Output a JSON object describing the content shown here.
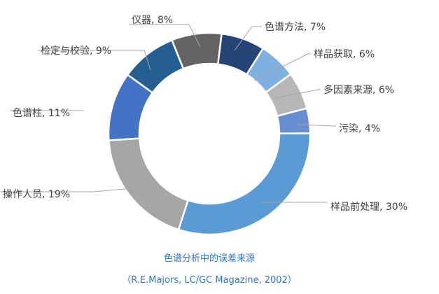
{
  "chart_data": {
    "type": "pie",
    "variant": "donut",
    "title": "色谱分析中的误差来源",
    "subtitle": "（R.E.Majors, LC/GC Magazine, 2002）",
    "legend": "none",
    "slices": [
      {
        "label": "色谱方法",
        "value": 7,
        "display": "色谱方法, 7%",
        "color": "#264478"
      },
      {
        "label": "样品获取",
        "value": 6,
        "display": "样品获取, 6%",
        "color": "#7FB1E0"
      },
      {
        "label": "多因素来源",
        "value": 6,
        "display": "多因素来源, 6%",
        "color": "#B7B7B7"
      },
      {
        "label": "污染",
        "value": 4,
        "display": "污染, 4%",
        "color": "#698ED0"
      },
      {
        "label": "样品前处理",
        "value": 30,
        "display": "样品前处理, 30%",
        "color": "#5B9BD5"
      },
      {
        "label": "操作人员",
        "value": 19,
        "display": "操作人员, 19%",
        "color": "#A5A7A7"
      },
      {
        "label": "色谱柱",
        "value": 11,
        "display": "色谱柱, 11%",
        "color": "#4472C4"
      },
      {
        "label": "检定与校验",
        "value": 9,
        "display": "检定与校验, 9%",
        "color": "#255E91"
      },
      {
        "label": "仪器",
        "value": 8,
        "display": "仪器, 8%",
        "color": "#636363"
      }
    ]
  }
}
